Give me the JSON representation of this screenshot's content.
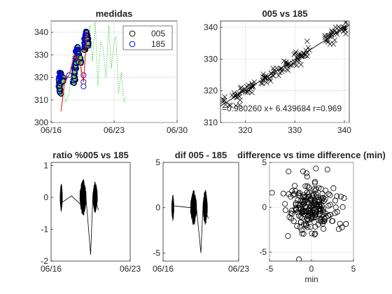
{
  "chart_data": [
    {
      "id": "medidas",
      "type": "line",
      "title": "medidas",
      "xlim": [
        16.0,
        30.0
      ],
      "ylim": [
        300,
        345
      ],
      "xticks": [
        {
          "v": 16,
          "label": "06/16"
        },
        {
          "v": 23,
          "label": "06/23"
        },
        {
          "v": 30,
          "label": "06/30"
        }
      ],
      "yticks": [
        300,
        310,
        320,
        330,
        340
      ],
      "grid": true,
      "legend": {
        "position": "top-right",
        "entries": [
          {
            "label": "005",
            "color": "#000000"
          },
          {
            "label": "185",
            "color": "#0000ff"
          }
        ]
      },
      "clusters_005": [
        {
          "x": [
            16.9,
            17.0,
            17.3
          ],
          "y": [
            313,
            321,
            319
          ],
          "spread": 0.8
        },
        {
          "x": [
            18.5,
            18.7,
            18.9,
            19.2
          ],
          "y": [
            317,
            327,
            334,
            327
          ],
          "spread": 1.0
        },
        {
          "x": [
            19.7,
            19.9,
            20.1
          ],
          "y": [
            332,
            340,
            334
          ],
          "spread": 0.8
        }
      ],
      "markers_005": [
        {
          "x": 18.0,
          "y": 321
        },
        {
          "x": 19.6,
          "y": 318
        },
        {
          "x": 19.6,
          "y": 316
        },
        {
          "x": 19.6,
          "y": 321
        }
      ],
      "red_line": {
        "x": [
          17.1,
          17.5,
          18.0,
          18.6,
          19.2,
          19.6,
          20.0
        ],
        "y": [
          305,
          318,
          321,
          330,
          327,
          318,
          340
        ],
        "color": "#ff0000"
      },
      "green_dotted": {
        "x": [
          16.9,
          17.1,
          17.3,
          17.6,
          18.0,
          18.4,
          18.8,
          19.3,
          19.8,
          20.3,
          20.6,
          20.9,
          21.2,
          21.5,
          21.8,
          22.1,
          22.4,
          22.7,
          23.0,
          23.2,
          23.5,
          23.8,
          24.1,
          24.3
        ],
        "y": [
          313,
          322,
          320,
          309,
          313,
          330,
          333,
          322,
          331,
          343,
          327,
          345,
          316,
          336,
          332,
          320,
          343,
          324,
          336,
          338,
          313,
          322,
          309,
          311
        ],
        "color": "#00bb00"
      }
    },
    {
      "id": "scatter005vs185",
      "type": "scatter",
      "title": "005 vs 185",
      "xlim": [
        315,
        341
      ],
      "ylim": [
        310,
        342
      ],
      "xticks": [
        320,
        330,
        340
      ],
      "yticks": [
        310,
        320,
        330,
        340
      ],
      "grid": true,
      "annotation": "=0.980260 x+ 6.439684 r=0.969",
      "fit": {
        "slope": 0.98026,
        "intercept": 6.439684
      },
      "groups": [
        {
          "x": [
            315.5,
            322.0
          ],
          "count": 40
        },
        {
          "x": [
            323.0,
            328.5
          ],
          "count": 35
        },
        {
          "x": [
            328.5,
            333.0
          ],
          "count": 35
        },
        {
          "x": [
            336.0,
            340.5
          ],
          "count": 35
        }
      ]
    },
    {
      "id": "ratio",
      "type": "line",
      "title": "ratio %005 vs 185",
      "xlim": [
        16.0,
        23.0
      ],
      "ylim": [
        -2.0,
        1.1
      ],
      "xticks": [
        {
          "v": 16,
          "label": "06/16"
        },
        {
          "v": 23,
          "label": "06/23"
        }
      ],
      "yticks": [
        -2,
        -1,
        0,
        1
      ],
      "grid": false,
      "bursts": [
        {
          "start": 16.8,
          "end": 17.0,
          "amp": 0.45
        },
        {
          "start": 18.55,
          "end": 19.1,
          "amp": 0.6
        },
        {
          "start": 19.7,
          "end": 20.1,
          "amp": 0.5
        }
      ],
      "connectors": {
        "x": [
          17.0,
          17.8,
          18.55,
          19.1,
          19.5,
          19.7,
          20.2
        ],
        "y": [
          -0.15,
          0.05,
          -0.2,
          -0.05,
          -1.8,
          0.1,
          -0.4
        ]
      }
    },
    {
      "id": "dif",
      "type": "line",
      "title": "dif 005 - 185",
      "xlim": [
        16.0,
        23.0
      ],
      "ylim": [
        -5.9,
        5.0
      ],
      "xticks": [
        {
          "v": 16,
          "label": "06/16"
        },
        {
          "v": 23,
          "label": "06/23"
        }
      ],
      "yticks": [
        -5,
        0,
        5
      ],
      "grid": false,
      "bursts": [
        {
          "start": 16.8,
          "end": 17.0,
          "amp": 1.5
        },
        {
          "start": 18.55,
          "end": 19.1,
          "amp": 2.0
        },
        {
          "start": 19.7,
          "end": 20.1,
          "amp": 2.0
        }
      ],
      "connectors": {
        "x": [
          17.0,
          18.55,
          19.1,
          19.5,
          19.7,
          20.2
        ],
        "y": [
          0.2,
          0.0,
          -0.1,
          -5.0,
          0.3,
          -1.2
        ]
      }
    },
    {
      "id": "diffscatter",
      "type": "scatter",
      "title": "difference vs time difference (min)",
      "xlabel": "min",
      "xlim": [
        -5,
        5
      ],
      "ylim": [
        -6,
        5
      ],
      "xticks": [
        -5,
        0,
        5
      ],
      "yticks": [
        -5,
        0,
        5
      ],
      "grid": true,
      "count": 210,
      "center": [
        0,
        0
      ],
      "spread": [
        1.5,
        1.4
      ],
      "extremes": [
        {
          "x": -1.0,
          "y": 4.0
        },
        {
          "x": -0.6,
          "y": 3.8
        },
        {
          "x": 1.9,
          "y": 4.2
        },
        {
          "x": -2.8,
          "y": -3.2
        },
        {
          "x": -1.5,
          "y": -5.8
        },
        {
          "x": 3.5,
          "y": 1.2
        },
        {
          "x": -2.0,
          "y": 2.4
        }
      ]
    }
  ]
}
